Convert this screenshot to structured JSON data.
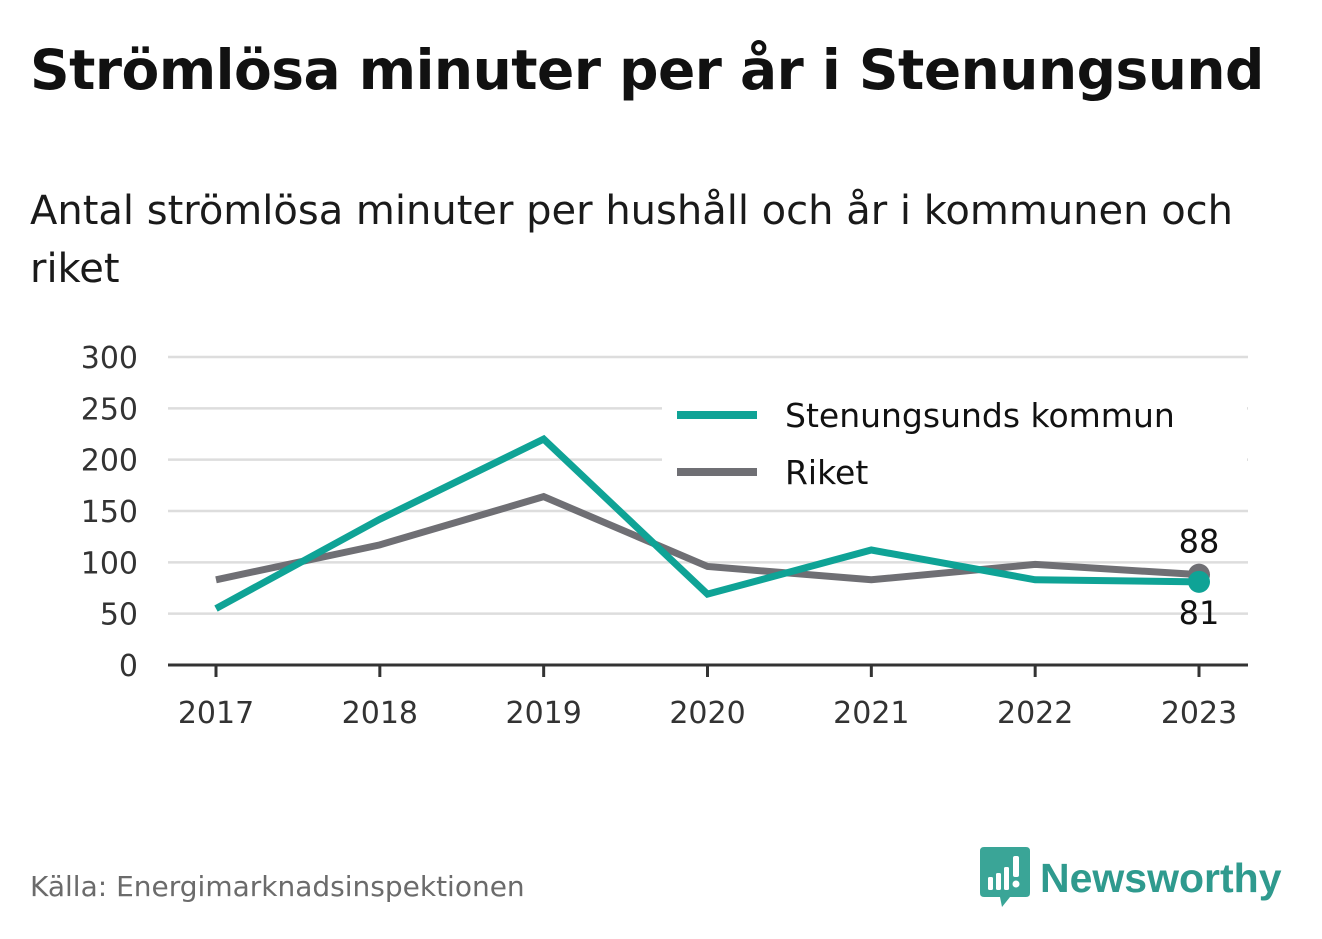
{
  "title": "Strömlösa minuter per år i Stenungsund",
  "subtitle": "Antal strömlösa minuter per hushåll och år i kommunen och riket",
  "source": "Källa: Energimarknadsinspektionen",
  "brand": "Newsworthy",
  "colors": {
    "series_kommun": "#0fa396",
    "series_riket": "#6f6f74",
    "grid": "#dddddd",
    "axis": "#333333",
    "brand": "#2f9a8e"
  },
  "chart_data": {
    "type": "line",
    "title": "Strömlösa minuter per år i Stenungsund",
    "subtitle": "Antal strömlösa minuter per hushåll och år i kommunen och riket",
    "categories": [
      "2017",
      "2018",
      "2019",
      "2020",
      "2021",
      "2022",
      "2023"
    ],
    "ylim": [
      0,
      300
    ],
    "yticks": [
      0,
      50,
      100,
      150,
      200,
      250,
      300
    ],
    "grid": true,
    "legend": "top-right",
    "series": [
      {
        "name": "Stenungsunds kommun",
        "values": [
          55,
          142,
          220,
          69,
          112,
          83,
          81
        ],
        "end_label": "81"
      },
      {
        "name": "Riket",
        "values": [
          83,
          117,
          164,
          96,
          83,
          98,
          88
        ],
        "end_label": "88"
      }
    ]
  }
}
